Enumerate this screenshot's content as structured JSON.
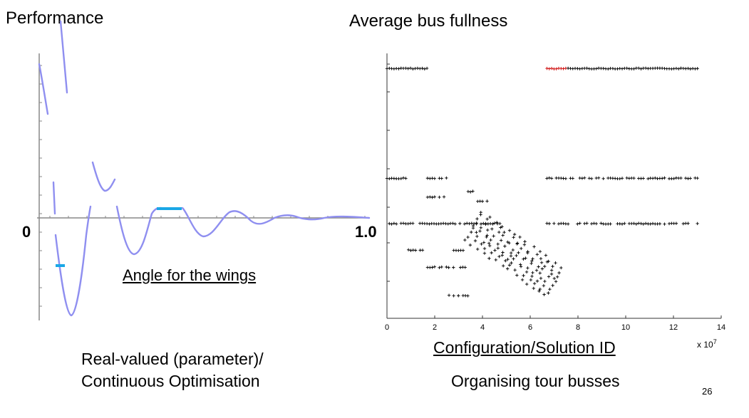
{
  "titles": {
    "left_axis_label": "Performance",
    "right_title": "Average bus fullness",
    "x_start_label": "0",
    "x_end_label": "1.0",
    "left_xlabel": "Angle for the wings",
    "left_caption_line1": "Real-valued (parameter)/",
    "left_caption_line2": "Continuous Optimisation",
    "right_xlabel": "Configuration/Solution ID",
    "right_caption": "Organising tour busses",
    "right_x_multiplier": "x 10",
    "right_x_multiplier_exp": "7",
    "page_number": "26"
  },
  "colors": {
    "curve": "#8f8ff0",
    "highlight": "#1aa7e6",
    "axis": "#888888",
    "markers": "#000000",
    "marker_highlight": "#cc0000"
  },
  "chart_data": [
    {
      "type": "line",
      "xlabel": "Angle for the wings",
      "ylabel": "Performance",
      "xlim": [
        0,
        1.0
      ],
      "description": "damped oscillating performance curve with asymptotic breaks near x=0; highlighted plateaus near local optima",
      "series": [
        {
          "values_note": "oscillation decays as x increases toward 1.0",
          "x": [
            0.0,
            0.05,
            0.1,
            0.15,
            0.2,
            0.25,
            0.3,
            0.35,
            0.4,
            0.45,
            0.5,
            0.55,
            0.6,
            0.65,
            0.7,
            0.75,
            0.8,
            0.85,
            0.9,
            0.95,
            1.0
          ],
          "y": [
            0.9,
            -0.6,
            0.5,
            -0.5,
            0.05,
            0.04,
            -0.2,
            0.02,
            0.1,
            0.0,
            -0.07,
            0.0,
            0.05,
            0.0,
            -0.03,
            0.0,
            0.02,
            0.0,
            -0.01,
            0.0,
            0.0
          ]
        }
      ],
      "highlights": [
        {
          "x": [
            0.36,
            0.44
          ],
          "y": 0.05
        },
        {
          "x": [
            0.055,
            0.075
          ],
          "y": -0.28
        }
      ]
    },
    {
      "type": "scatter",
      "title": "Average bus fullness",
      "xlabel": "Configuration/Solution ID",
      "x_tick_labels": [
        "0",
        "2",
        "4",
        "6",
        "8",
        "10",
        "12",
        "14"
      ],
      "x_multiplier": "x 10^7",
      "xlim": [
        0,
        14
      ],
      "ylim": [
        0,
        7
      ],
      "marker": "+",
      "segments": [
        {
          "x0": 0.0,
          "x1": 1.7,
          "y": 6.6
        },
        {
          "x0": 6.7,
          "x1": 13.1,
          "y": 6.6,
          "partial_highlight": [
            6.7,
            7.5
          ]
        },
        {
          "x0": 0.0,
          "x1": 0.8,
          "y": 3.7
        },
        {
          "x0": 1.7,
          "x1": 2.5,
          "y": 3.7
        },
        {
          "x0": 6.7,
          "x1": 13.1,
          "y": 3.7
        },
        {
          "x0": 1.7,
          "x1": 2.5,
          "y": 3.2
        },
        {
          "x0": 3.4,
          "x1": 3.7,
          "y": 3.35
        },
        {
          "x0": 3.8,
          "x1": 4.2,
          "y": 3.1
        },
        {
          "x0": 0.0,
          "x1": 4.8,
          "y": 2.5
        },
        {
          "x0": 6.7,
          "x1": 13.1,
          "y": 2.5
        },
        {
          "x0": 0.9,
          "x1": 1.5,
          "y": 1.8
        },
        {
          "x0": 2.6,
          "x1": 3.2,
          "y": 1.8
        },
        {
          "x0": 1.7,
          "x1": 3.3,
          "y": 1.35
        },
        {
          "x0": 2.5,
          "x1": 3.4,
          "y": 0.6
        }
      ],
      "diagonal_cluster": {
        "x0": 3.3,
        "x1": 6.9,
        "y0": 2.6,
        "y1": 1.0
      }
    }
  ]
}
